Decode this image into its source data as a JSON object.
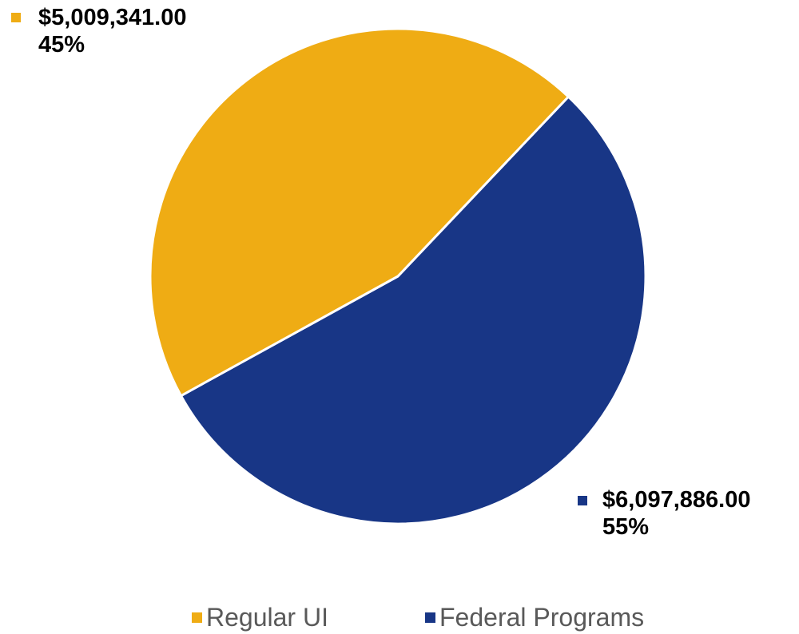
{
  "chart_data": {
    "type": "pie",
    "categories": [
      "Regular UI",
      "Federal Programs"
    ],
    "values": [
      5009341.0,
      6097886.0
    ],
    "value_labels": [
      "$5,009,341.00",
      "$6,097,886.00"
    ],
    "percent_labels": [
      "45%",
      "55%"
    ],
    "colors": [
      "#EFAC14",
      "#183686"
    ],
    "legend_position": "bottom",
    "start_direction": "clockwise from top-right slice boundary"
  },
  "labels": {
    "regular": {
      "value": "$5,009,341.00",
      "percent": "45%"
    },
    "federal": {
      "value": "$6,097,886.00",
      "percent": "55%"
    }
  },
  "legend": {
    "regular": "Regular UI",
    "federal": "Federal Programs"
  }
}
